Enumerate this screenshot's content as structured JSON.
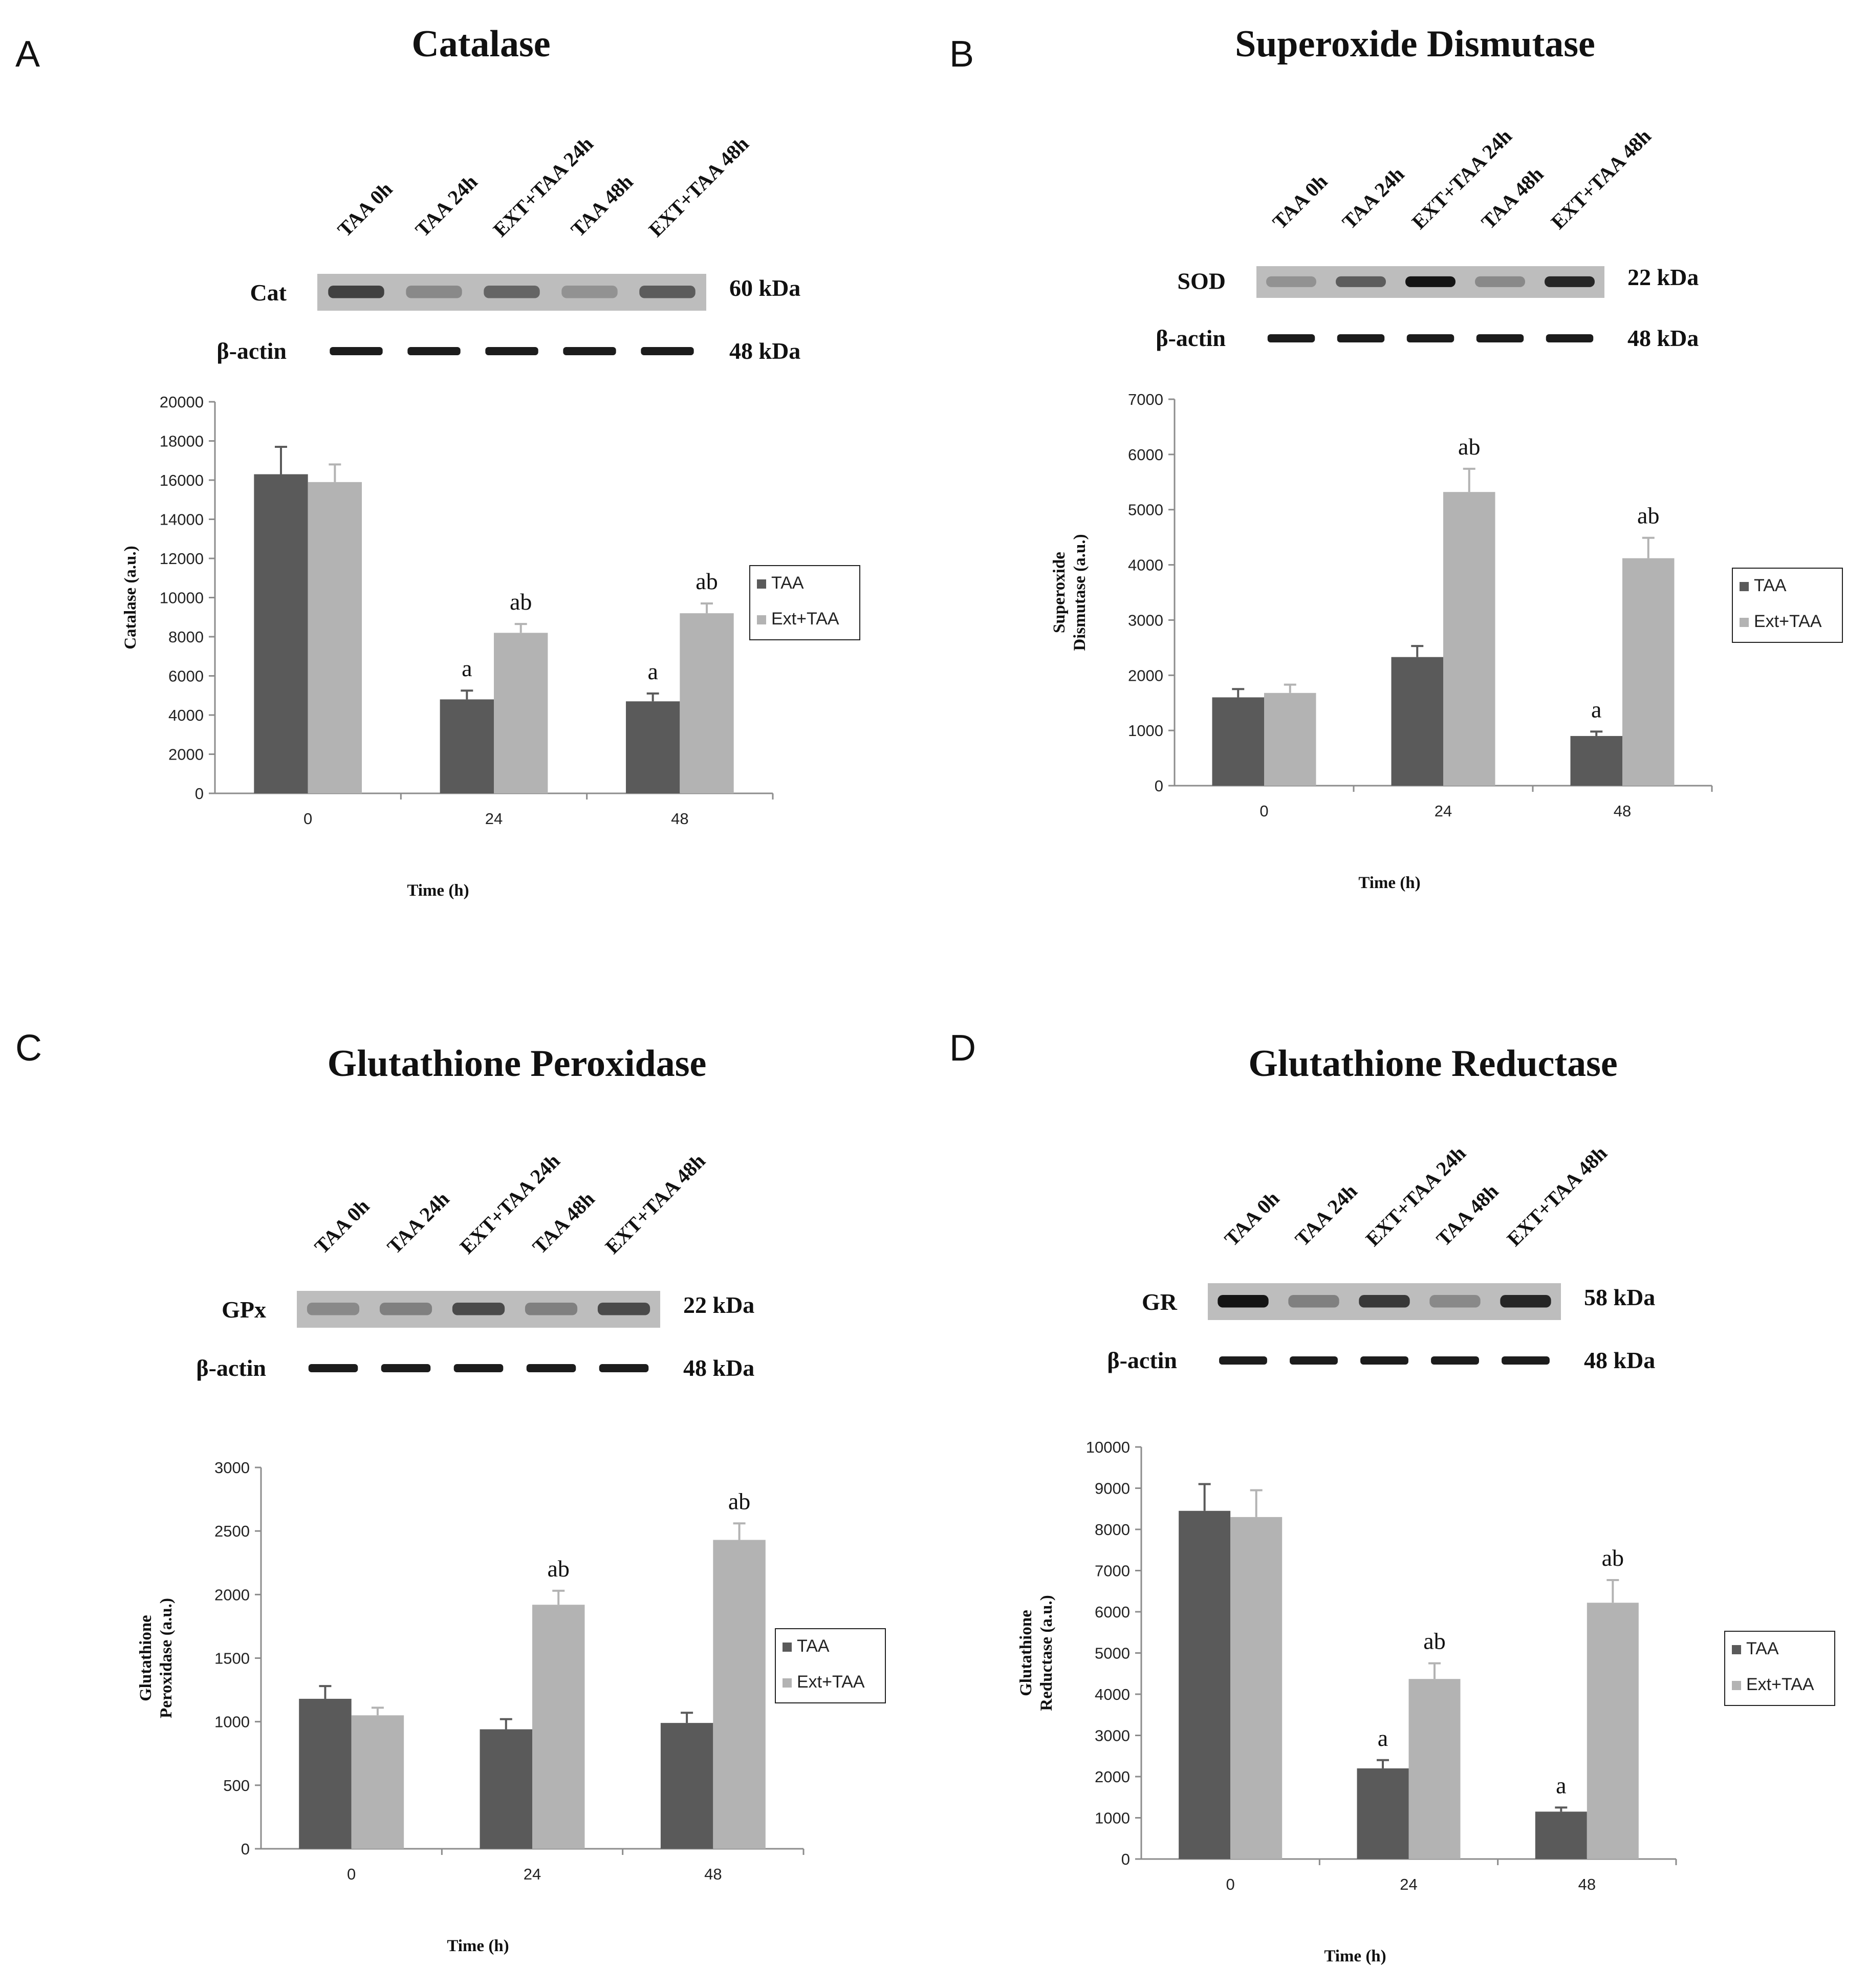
{
  "figure": {
    "colors": {
      "taa": "#5a5a5a",
      "ext": "#b3b3b3",
      "axis": "#8c8c8c"
    },
    "legend": [
      "TAA",
      "Ext+TAA"
    ],
    "lanes": [
      "TAA 0h",
      "TAA 24h",
      "EXT+TAA 24h",
      "TAA 48h",
      "EXT+TAA 48h"
    ],
    "actin_label": "β-actin",
    "actin_kda": "48 kDa"
  },
  "panels": [
    {
      "letter": "A",
      "title": "Catalase",
      "blot": {
        "label": "Cat",
        "kda": "60 kDa",
        "intensities": [
          0.75,
          0.35,
          0.55,
          0.3,
          0.6
        ]
      },
      "chart": {
        "ylabel_lines": [
          "Catalase (a.u.)"
        ],
        "xlabel": "Time (h)",
        "ymax": 20000,
        "ystep": 2000,
        "ticks": [
          "0",
          "2000",
          "4000",
          "6000",
          "8000",
          "10000",
          "12000",
          "14000",
          "16000",
          "18000",
          "20000"
        ]
      }
    },
    {
      "letter": "B",
      "title": "Superoxide Dismutase",
      "blot": {
        "label": "SOD",
        "kda": "22 kDa",
        "intensities": [
          0.3,
          0.6,
          1.0,
          0.35,
          0.9
        ]
      },
      "chart": {
        "ylabel_lines": [
          "Superoxide",
          "Dismutase (a.u.)"
        ],
        "xlabel": "Time (h)",
        "ymax": 7000,
        "ystep": 1000,
        "ticks": [
          "0",
          "1000",
          "2000",
          "3000",
          "4000",
          "5000",
          "6000",
          "7000"
        ]
      }
    },
    {
      "letter": "C",
      "title": "Glutathione Peroxidase",
      "blot": {
        "label": "GPx",
        "kda": "22 kDa",
        "intensities": [
          0.35,
          0.4,
          0.7,
          0.4,
          0.7
        ]
      },
      "chart": {
        "ylabel_lines": [
          "Glutathione",
          "Peroxidase (a.u.)"
        ],
        "xlabel": "Time (h)",
        "ymax": 3000,
        "ystep": 500,
        "ticks": [
          "0",
          "500",
          "1000",
          "1500",
          "2000",
          "2500",
          "3000"
        ]
      }
    },
    {
      "letter": "D",
      "title": "Glutathione Reductase",
      "blot": {
        "label": "GR",
        "kda": "58 kDa",
        "intensities": [
          1.0,
          0.4,
          0.8,
          0.35,
          0.9
        ]
      },
      "chart": {
        "ylabel_lines": [
          "Glutathione",
          "Reductase (a.u.)"
        ],
        "xlabel": "Time (h)",
        "ymax": 10000,
        "ystep": 1000,
        "ticks": [
          "0",
          "1000",
          "2000",
          "3000",
          "4000",
          "5000",
          "6000",
          "7000",
          "8000",
          "9000",
          "10000"
        ]
      }
    }
  ],
  "chart_data": [
    {
      "type": "bar",
      "title": "Catalase",
      "xlabel": "Time (h)",
      "ylabel": "Catalase (a.u.)",
      "ylim": [
        0,
        20000
      ],
      "categories": [
        "0",
        "24",
        "48"
      ],
      "series": [
        {
          "name": "TAA",
          "values": [
            16300,
            4800,
            4700
          ],
          "errors": [
            1400,
            450,
            400
          ],
          "labels": [
            "",
            "a",
            "a"
          ]
        },
        {
          "name": "Ext+TAA",
          "values": [
            15900,
            8200,
            9200
          ],
          "errors": [
            900,
            450,
            500
          ],
          "labels": [
            "",
            "ab",
            "ab"
          ]
        }
      ]
    },
    {
      "type": "bar",
      "title": "Superoxide Dismutase",
      "xlabel": "Time (h)",
      "ylabel": "Superoxide Dismutase (a.u.)",
      "ylim": [
        0,
        7000
      ],
      "categories": [
        "0",
        "24",
        "48"
      ],
      "series": [
        {
          "name": "TAA",
          "values": [
            1600,
            2330,
            900
          ],
          "errors": [
            150,
            200,
            80
          ],
          "labels": [
            "",
            "",
            "a"
          ]
        },
        {
          "name": "Ext+TAA",
          "values": [
            1680,
            5320,
            4120
          ],
          "errors": [
            150,
            420,
            370
          ],
          "labels": [
            "",
            "ab",
            "ab"
          ]
        }
      ]
    },
    {
      "type": "bar",
      "title": "Glutathione Peroxidase",
      "xlabel": "Time (h)",
      "ylabel": "Glutathione Peroxidase (a.u.)",
      "ylim": [
        0,
        3000
      ],
      "categories": [
        "0",
        "24",
        "48"
      ],
      "series": [
        {
          "name": "TAA",
          "values": [
            1180,
            940,
            990
          ],
          "errors": [
            100,
            80,
            80
          ],
          "labels": [
            "",
            "",
            ""
          ]
        },
        {
          "name": "Ext+TAA",
          "values": [
            1050,
            1920,
            2430
          ],
          "errors": [
            60,
            110,
            130
          ],
          "labels": [
            "",
            "ab",
            "ab"
          ]
        }
      ]
    },
    {
      "type": "bar",
      "title": "Glutathione Reductase",
      "xlabel": "Time (h)",
      "ylabel": "Glutathione Reductase (a.u.)",
      "ylim": [
        0,
        10000
      ],
      "categories": [
        "0",
        "24",
        "48"
      ],
      "series": [
        {
          "name": "TAA",
          "values": [
            8450,
            2200,
            1150
          ],
          "errors": [
            650,
            200,
            100
          ],
          "labels": [
            "",
            "a",
            "a"
          ]
        },
        {
          "name": "Ext+TAA",
          "values": [
            8300,
            4370,
            6220
          ],
          "errors": [
            650,
            380,
            550
          ],
          "labels": [
            "",
            "ab",
            "ab"
          ]
        }
      ]
    }
  ]
}
